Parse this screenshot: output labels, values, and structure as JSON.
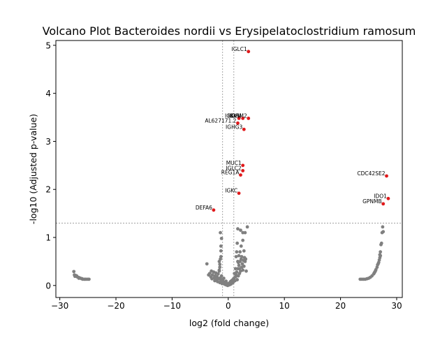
{
  "chart_data": {
    "type": "scatter",
    "title": "Volcano Plot Bacteroides nordii vs Erysipelatoclostridium ramosum",
    "xlabel": "log2 (fold change)",
    "ylabel": "-log10 (Adjusted p-value)",
    "xlim": [
      -30.7,
      31.0
    ],
    "ylim": [
      -0.25,
      5.1
    ],
    "xticks": [
      -30,
      -20,
      -10,
      0,
      10,
      20,
      30
    ],
    "yticks": [
      0,
      1,
      2,
      3,
      4,
      5
    ],
    "grid": false,
    "legend": "none",
    "thresholds": {
      "fold_change_lines": [
        -1,
        1
      ],
      "pvalue_line": 1.3
    },
    "colors": {
      "significant": "#e0191b",
      "nonsignificant": "#808080",
      "threshold": "#808080"
    },
    "significant_points": [
      {
        "label": "IGLC1",
        "x": 3.6,
        "y": 4.87
      },
      {
        "label": "IGKV",
        "x": 1.9,
        "y": 3.48
      },
      {
        "label": "IGKM",
        "x": 2.6,
        "y": 3.48
      },
      {
        "label": "IGHM2",
        "x": 3.6,
        "y": 3.48
      },
      {
        "label": "AL627171.2",
        "x": 1.7,
        "y": 3.38
      },
      {
        "label": "IGHG3",
        "x": 2.8,
        "y": 3.25
      },
      {
        "label": "MUC1",
        "x": 2.6,
        "y": 2.5
      },
      {
        "label": "IGLC2",
        "x": 2.6,
        "y": 2.39
      },
      {
        "label": "REG1A",
        "x": 2.2,
        "y": 2.3
      },
      {
        "label": "CDC42SE2",
        "x": 28.2,
        "y": 2.28
      },
      {
        "label": "IGKC",
        "x": 1.9,
        "y": 1.92
      },
      {
        "label": "IDO1",
        "x": 28.5,
        "y": 1.81
      },
      {
        "label": "GPNMB",
        "x": 27.6,
        "y": 1.7
      },
      {
        "label": "DEFA6",
        "x": -2.6,
        "y": 1.57
      }
    ],
    "nonsignificant_points": [
      [
        -27.5,
        0.29
      ],
      [
        -27.4,
        0.22
      ],
      [
        -27.2,
        0.21
      ],
      [
        -27.0,
        0.2
      ],
      [
        -26.9,
        0.18
      ],
      [
        -26.7,
        0.17
      ],
      [
        -26.5,
        0.16
      ],
      [
        -26.3,
        0.15
      ],
      [
        -26.1,
        0.14
      ],
      [
        -25.9,
        0.13
      ],
      [
        -25.6,
        0.13
      ],
      [
        -25.3,
        0.13
      ],
      [
        -25.0,
        0.13
      ],
      [
        -24.8,
        0.13
      ],
      [
        -27.3,
        0.19
      ],
      [
        -26.6,
        0.15
      ],
      [
        -26.0,
        0.14
      ],
      [
        -25.5,
        0.13
      ],
      [
        -3.8,
        0.45
      ],
      [
        -3.5,
        0.22
      ],
      [
        -3.3,
        0.25
      ],
      [
        -3.1,
        0.18
      ],
      [
        -3.0,
        0.3
      ],
      [
        -2.9,
        0.14
      ],
      [
        -2.8,
        0.22
      ],
      [
        -2.6,
        0.28
      ],
      [
        -2.5,
        0.16
      ],
      [
        -2.4,
        0.1
      ],
      [
        -2.3,
        0.2
      ],
      [
        -2.2,
        0.26
      ],
      [
        -2.1,
        0.12
      ],
      [
        -2.0,
        0.18
      ],
      [
        -1.9,
        0.08
      ],
      [
        -1.8,
        0.24
      ],
      [
        -1.7,
        0.14
      ],
      [
        -1.6,
        0.3
      ],
      [
        -1.5,
        0.06
      ],
      [
        -1.4,
        0.16
      ],
      [
        -1.3,
        0.1
      ],
      [
        -1.2,
        0.2
      ],
      [
        -1.1,
        0.04
      ],
      [
        -1.0,
        0.12
      ],
      [
        -0.9,
        0.08
      ],
      [
        -0.8,
        0.15
      ],
      [
        -0.7,
        0.03
      ],
      [
        -0.6,
        0.06
      ],
      [
        -0.5,
        0.02
      ],
      [
        -0.4,
        0.09
      ],
      [
        -0.3,
        0.01
      ],
      [
        -0.2,
        0.04
      ],
      [
        -0.1,
        0.0
      ],
      [
        0.0,
        0.02
      ],
      [
        0.1,
        0.01
      ],
      [
        0.2,
        0.05
      ],
      [
        0.3,
        0.02
      ],
      [
        0.4,
        0.08
      ],
      [
        0.5,
        0.03
      ],
      [
        0.6,
        0.1
      ],
      [
        0.7,
        0.05
      ],
      [
        0.8,
        0.12
      ],
      [
        0.9,
        0.07
      ],
      [
        1.0,
        0.15
      ],
      [
        -1.6,
        0.5
      ],
      [
        -1.5,
        0.44
      ],
      [
        -1.4,
        0.55
      ],
      [
        -1.3,
        0.6
      ],
      [
        -1.3,
        0.82
      ],
      [
        -1.2,
        0.98
      ],
      [
        -1.4,
        1.1
      ],
      [
        -1.3,
        0.72
      ],
      [
        -1.5,
        0.38
      ],
      [
        -1.6,
        0.32
      ],
      [
        1.2,
        0.1
      ],
      [
        1.3,
        0.18
      ],
      [
        1.4,
        0.22
      ],
      [
        1.5,
        0.28
      ],
      [
        1.6,
        0.12
      ],
      [
        1.7,
        0.35
      ],
      [
        1.8,
        0.2
      ],
      [
        1.9,
        0.42
      ],
      [
        2.0,
        0.25
      ],
      [
        2.1,
        0.5
      ],
      [
        2.2,
        0.3
      ],
      [
        2.3,
        0.55
      ],
      [
        2.4,
        0.38
      ],
      [
        2.5,
        0.45
      ],
      [
        2.6,
        0.32
      ],
      [
        2.7,
        0.52
      ],
      [
        2.8,
        0.4
      ],
      [
        2.9,
        0.58
      ],
      [
        3.0,
        0.5
      ],
      [
        3.1,
        0.55
      ],
      [
        1.4,
        0.6
      ],
      [
        1.5,
        0.7
      ],
      [
        1.6,
        0.88
      ],
      [
        1.7,
        0.5
      ],
      [
        1.9,
        0.62
      ],
      [
        2.1,
        0.7
      ],
      [
        2.3,
        0.82
      ],
      [
        2.6,
        0.94
      ],
      [
        2.2,
        1.15
      ],
      [
        2.6,
        1.1
      ],
      [
        3.0,
        1.1
      ],
      [
        3.4,
        1.22
      ],
      [
        1.7,
        1.18
      ],
      [
        1.8,
        0.48
      ],
      [
        2.0,
        0.35
      ],
      [
        2.4,
        0.6
      ],
      [
        2.8,
        0.72
      ],
      [
        1.3,
        0.35
      ],
      [
        1.1,
        0.25
      ],
      [
        3.2,
        0.3
      ],
      [
        23.5,
        0.13
      ],
      [
        23.8,
        0.13
      ],
      [
        24.1,
        0.13
      ],
      [
        24.4,
        0.13
      ],
      [
        24.7,
        0.14
      ],
      [
        25.0,
        0.15
      ],
      [
        25.3,
        0.17
      ],
      [
        25.6,
        0.2
      ],
      [
        25.9,
        0.24
      ],
      [
        26.1,
        0.28
      ],
      [
        26.3,
        0.33
      ],
      [
        26.5,
        0.38
      ],
      [
        26.6,
        0.43
      ],
      [
        26.8,
        0.48
      ],
      [
        26.9,
        0.53
      ],
      [
        27.0,
        0.58
      ],
      [
        27.0,
        0.64
      ],
      [
        27.1,
        0.7
      ],
      [
        27.2,
        0.85
      ],
      [
        27.3,
        0.88
      ],
      [
        27.4,
        1.1
      ],
      [
        27.6,
        1.12
      ],
      [
        27.5,
        1.22
      ],
      [
        26.0,
        0.26
      ],
      [
        26.2,
        0.3
      ],
      [
        26.7,
        0.45
      ],
      [
        27.1,
        0.62
      ]
    ]
  }
}
